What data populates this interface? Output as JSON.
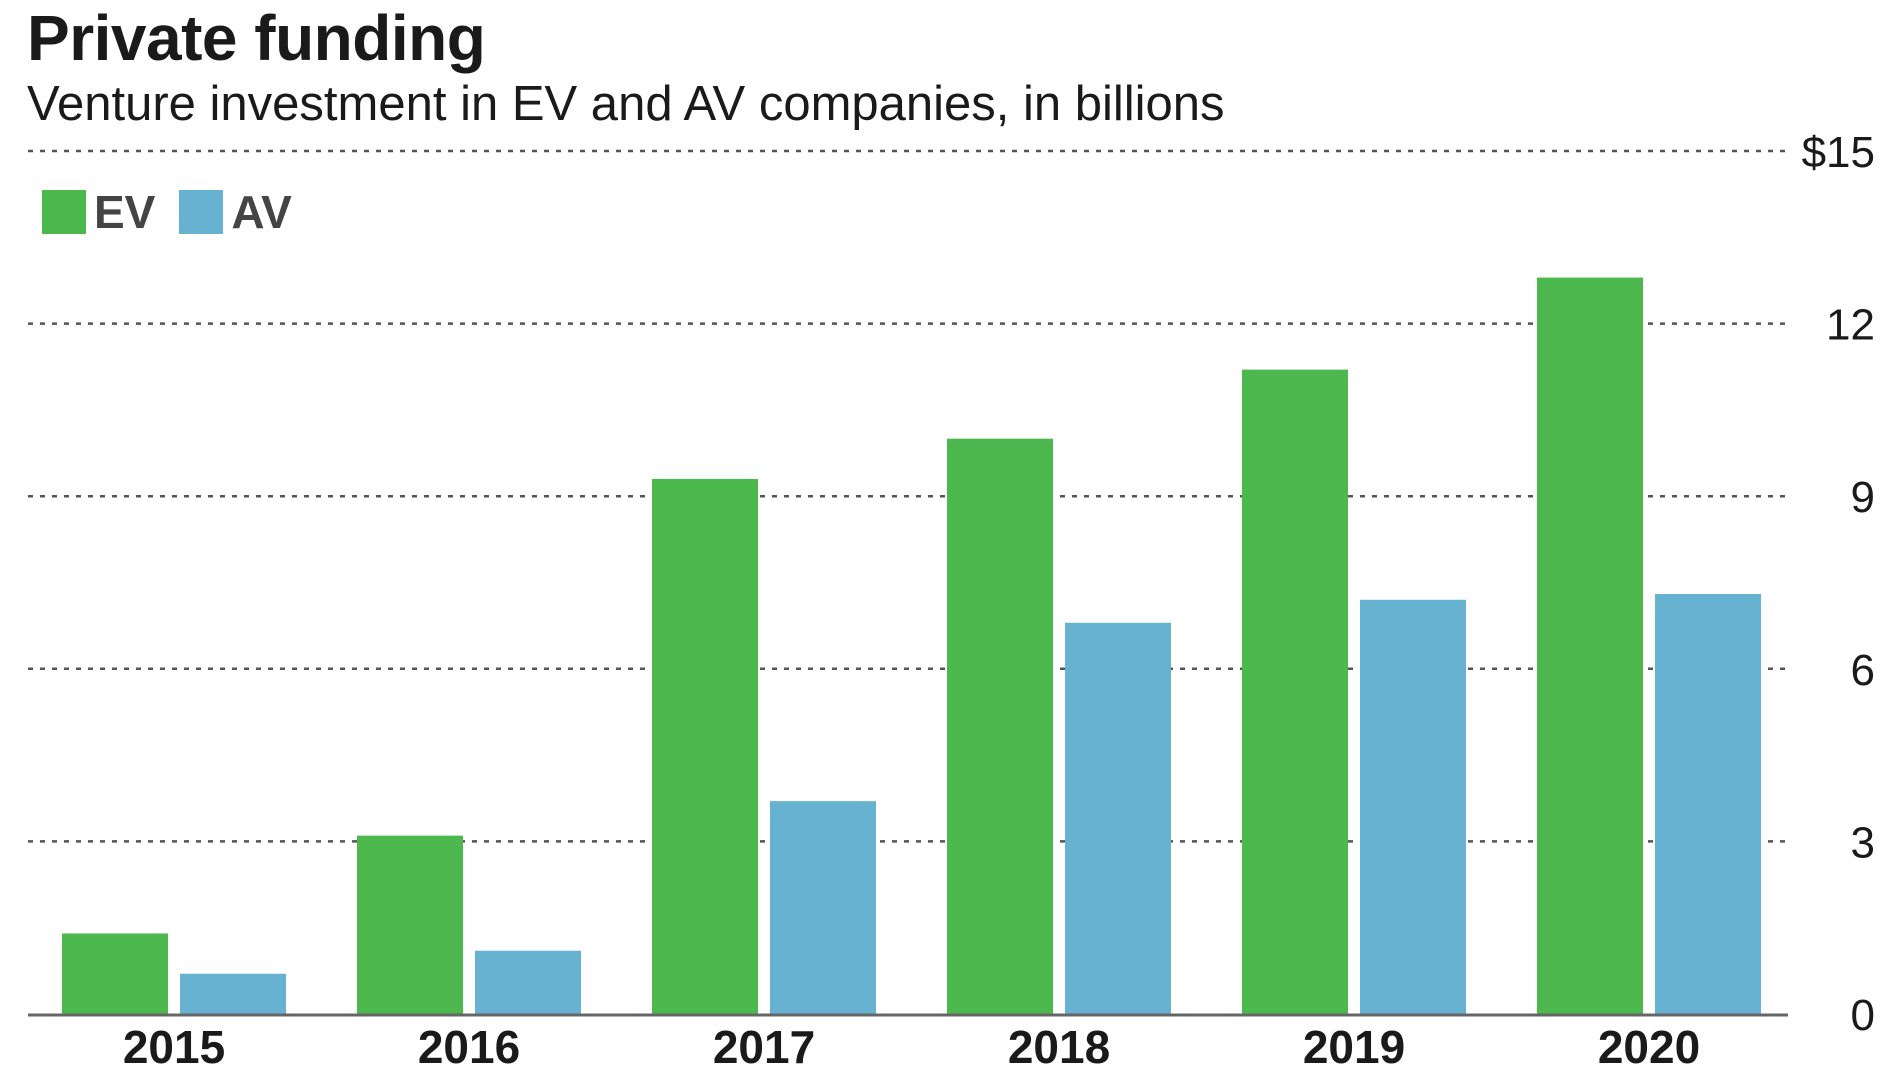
{
  "title": "Private funding",
  "subtitle": "Venture investment in EV and AV companies, in billions",
  "colors": {
    "ev": "#4db84e",
    "av": "#67b2d0",
    "grid": "#555555",
    "axis": "#666666"
  },
  "chart_data": {
    "type": "bar",
    "categories": [
      "2015",
      "2016",
      "2017",
      "2018",
      "2019",
      "2020"
    ],
    "series": [
      {
        "name": "EV",
        "values": [
          1.4,
          3.1,
          9.3,
          10.0,
          11.2,
          12.8
        ]
      },
      {
        "name": "AV",
        "values": [
          0.7,
          1.1,
          3.7,
          6.8,
          7.2,
          7.3
        ]
      }
    ],
    "ylim": [
      0,
      15
    ],
    "yticks": [
      0,
      3,
      6,
      9,
      12,
      15
    ],
    "ytick_labels": [
      "0",
      "3",
      "6",
      "9",
      "12",
      "$15"
    ],
    "grid": true,
    "legend": "top-left",
    "xlabel": "",
    "ylabel": ""
  }
}
